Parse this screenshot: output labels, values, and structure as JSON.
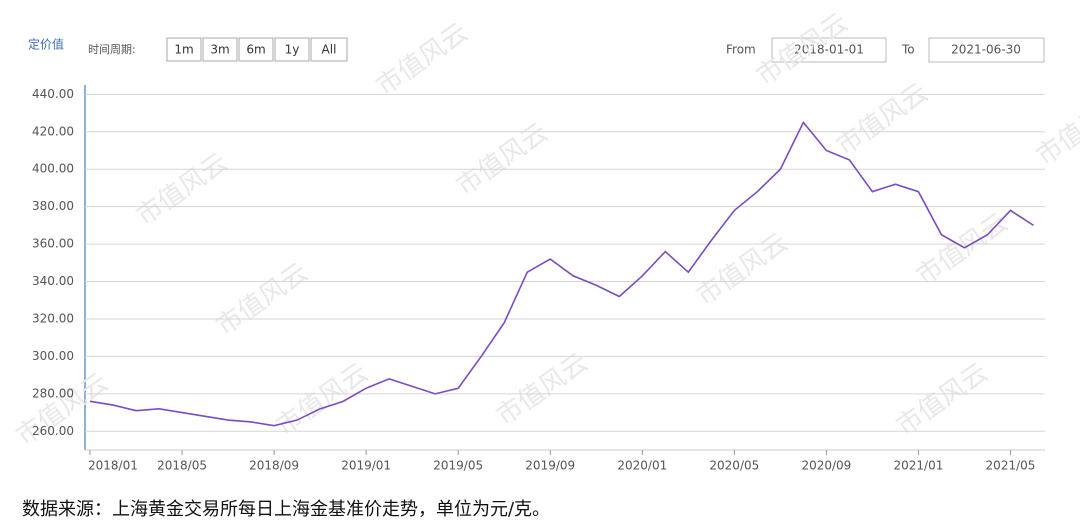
{
  "ui": {
    "chart_title": "定价值",
    "period_label": "时间周期:",
    "buttons": [
      "1m",
      "3m",
      "6m",
      "1y",
      "All"
    ],
    "from_label": "From",
    "from_date": "2018-01-01",
    "to_label": "To",
    "to_date": "2021-06-30",
    "source": "数据来源：上海黄金交易所每日上海金基准价走势，单位为元/克。",
    "watermark": "市值风云"
  },
  "chart_data": {
    "type": "line",
    "x": [
      "2018/01",
      "2018/02",
      "2018/03",
      "2018/04",
      "2018/05",
      "2018/06",
      "2018/07",
      "2018/08",
      "2018/09",
      "2018/10",
      "2018/11",
      "2018/12",
      "2019/01",
      "2019/02",
      "2019/03",
      "2019/04",
      "2019/05",
      "2019/06",
      "2019/07",
      "2019/08",
      "2019/09",
      "2019/10",
      "2019/11",
      "2019/12",
      "2020/01",
      "2020/02",
      "2020/03",
      "2020/04",
      "2020/05",
      "2020/06",
      "2020/07",
      "2020/08",
      "2020/09",
      "2020/10",
      "2020/11",
      "2020/12",
      "2021/01",
      "2021/02",
      "2021/03",
      "2021/04",
      "2021/05",
      "2021/06"
    ],
    "series": [
      {
        "name": "定价值",
        "color": "#7a4cc4",
        "values": [
          276,
          274,
          271,
          272,
          270,
          268,
          266,
          265,
          263,
          266,
          272,
          276,
          283,
          288,
          284,
          280,
          283,
          300,
          318,
          345,
          352,
          343,
          338,
          332,
          343,
          356,
          345,
          362,
          378,
          388,
          400,
          425,
          410,
          405,
          388,
          392,
          388,
          365,
          358,
          365,
          378,
          370
        ]
      }
    ],
    "xticks": [
      "2018/01",
      "2018/05",
      "2018/09",
      "2019/01",
      "2019/05",
      "2019/09",
      "2020/01",
      "2020/05",
      "2020/09",
      "2021/01",
      "2021/05"
    ],
    "ylim": [
      250,
      445
    ],
    "yticks": [
      {
        "value": 260,
        "label": "260.00"
      },
      {
        "value": 280,
        "label": "280.00"
      },
      {
        "value": 300,
        "label": "300.00"
      },
      {
        "value": 320,
        "label": "320.00"
      },
      {
        "value": 340,
        "label": "340.00"
      },
      {
        "value": 360,
        "label": "360.00"
      },
      {
        "value": 380,
        "label": "380.00"
      },
      {
        "value": 400,
        "label": "400.00"
      },
      {
        "value": 420,
        "label": "420.00"
      },
      {
        "value": 440,
        "label": "440.00"
      }
    ],
    "grid": true
  }
}
